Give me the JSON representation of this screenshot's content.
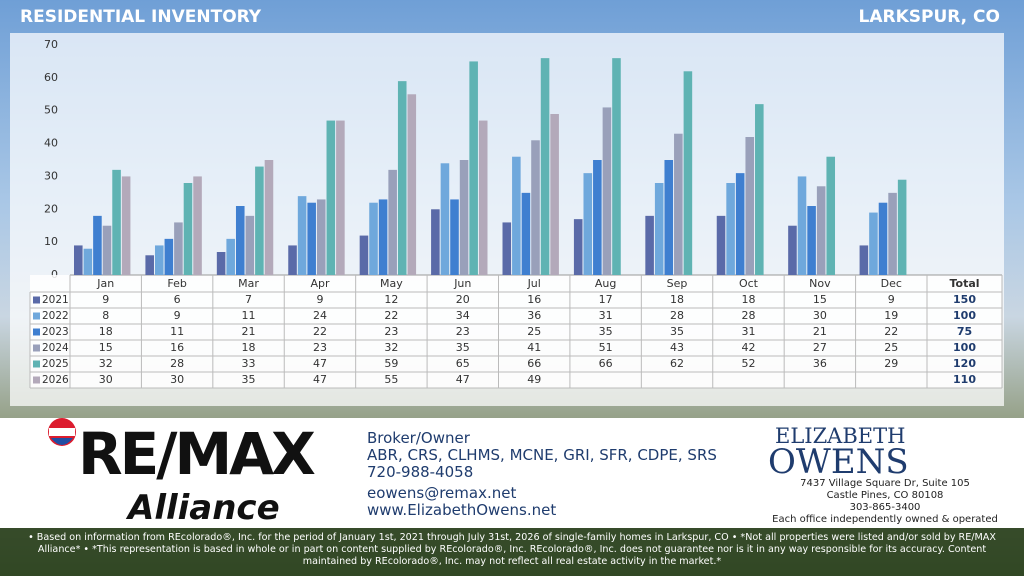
{
  "header": {
    "title": "RESIDENTIAL INVENTORY",
    "location": "LARKSPUR, CO"
  },
  "chart_data": {
    "type": "bar",
    "categories": [
      "Jan",
      "Feb",
      "Mar",
      "Apr",
      "May",
      "Jun",
      "Jul",
      "Aug",
      "Sep",
      "Oct",
      "Nov",
      "Dec"
    ],
    "series": [
      {
        "name": "2021",
        "color": "#5a6aa8",
        "values": [
          9,
          6,
          7,
          9,
          12,
          20,
          16,
          17,
          18,
          18,
          15,
          9
        ],
        "total": 150
      },
      {
        "name": "2022",
        "color": "#6fa8dc",
        "values": [
          8,
          9,
          11,
          24,
          22,
          34,
          36,
          31,
          28,
          28,
          30,
          19
        ],
        "total": 100
      },
      {
        "name": "2023",
        "color": "#3f7fd0",
        "values": [
          18,
          11,
          21,
          22,
          23,
          23,
          25,
          35,
          35,
          31,
          21,
          22
        ],
        "total": 75
      },
      {
        "name": "2024",
        "color": "#99a0ba",
        "values": [
          15,
          16,
          18,
          23,
          32,
          35,
          41,
          51,
          43,
          42,
          27,
          25
        ],
        "total": 100
      },
      {
        "name": "2025",
        "color": "#5fb3b3",
        "values": [
          32,
          28,
          33,
          47,
          59,
          65,
          66,
          66,
          62,
          52,
          36,
          29
        ],
        "total": 120
      },
      {
        "name": "2026",
        "color": "#b3a9ba",
        "values": [
          30,
          30,
          35,
          47,
          55,
          47,
          49,
          null,
          null,
          null,
          null,
          null
        ],
        "total": 110
      }
    ],
    "total_header": "Total",
    "ylim": [
      0,
      70
    ],
    "yticks": [
      0,
      10,
      20,
      30,
      40,
      50,
      60,
      70
    ],
    "grid": false
  },
  "footer": {
    "brand": "RE/MAX",
    "office": "Alliance",
    "role": "Broker/Owner",
    "designations": "ABR, CRS, CLHMS, MCNE, GRI, SFR, CDPE, SRS",
    "phone": "720-988-4058",
    "email": "eowens@remax.net",
    "website": "www.ElizabethOwens.net",
    "logo_first": "ELIZABETH",
    "logo_last": "OWENS",
    "address": "7437 Village Square Dr, Suite 105",
    "city": "Castle Pines, CO 80108",
    "office_phone": "303-865-3400",
    "notice": "Each office independently owned & operated"
  },
  "disclaimer": "• Based on information from REcolorado®, Inc. for the period of January 1st, 2021 through July 31st, 2026 of single-family homes in Larkspur, CO • *Not all properties were listed and/or sold by RE/MAX Alliance* • *This representation is based in whole or in part on content supplied by REcolorado®, Inc. REcolorado®, Inc. does not guarantee nor is it in any way responsible for its accuracy. Content maintained by REcolorado®, Inc. may not reflect all real estate activity in the market.*"
}
